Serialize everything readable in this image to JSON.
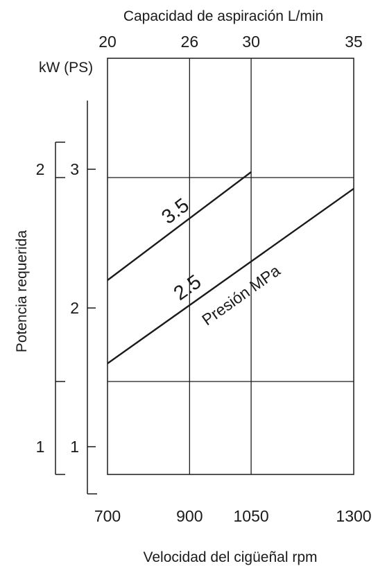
{
  "chart_data": {
    "type": "line",
    "x_top_label": "Capacidad de aspiración L/min",
    "x_top_ticks": [
      "20",
      "26",
      "30",
      "35"
    ],
    "x_bottom_label": "Velocidad del cigüeñal rpm",
    "x_bottom_ticks": [
      "700",
      "900",
      "1050",
      "1300"
    ],
    "xlim": [
      700,
      1300
    ],
    "y_unit_label": "kW (PS)",
    "y_label": "Potencia requerida",
    "y_kw_ticks": [
      {
        "label": "1",
        "value": 1.0
      },
      {
        "label": "2",
        "value": 2.0
      },
      {
        "label": "3",
        "value": 3.0
      }
    ],
    "y_ps_ticks": [
      {
        "label": "1",
        "value": 1.47
      },
      {
        "label": "2",
        "value": 2.94
      }
    ],
    "ylim_kw": [
      0.8,
      3.8
    ],
    "series": [
      {
        "name": "3.5",
        "x": [
          700,
          1050
        ],
        "y": [
          2.2,
          2.98
        ]
      },
      {
        "name": "2.5",
        "x": [
          700,
          1300
        ],
        "y": [
          1.6,
          2.86
        ]
      }
    ],
    "annotations": {
      "series_group_label": "Presión MPa"
    },
    "grid": true
  }
}
